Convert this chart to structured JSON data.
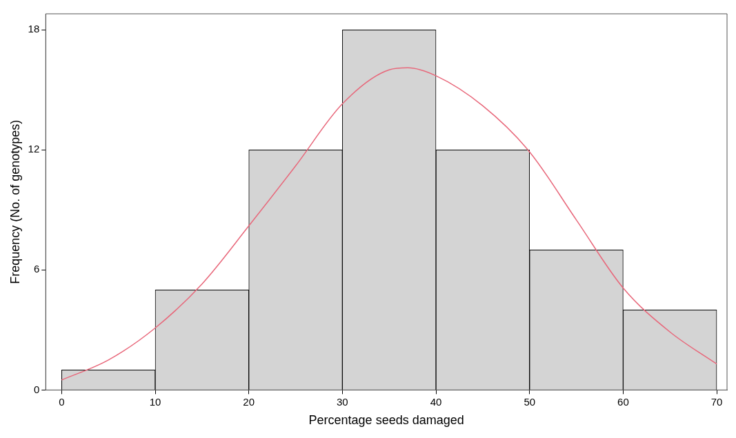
{
  "chart_data": {
    "type": "histogram",
    "xlabel": "Percentage seeds damaged",
    "ylabel": "Frequency (No. of genotypes)",
    "bins": [
      0,
      10,
      20,
      30,
      40,
      50,
      60,
      70
    ],
    "values": [
      1,
      5,
      12,
      18,
      12,
      7,
      4
    ],
    "color": "#d4d4d4",
    "series": [
      {
        "type": "line",
        "color": "#e8677a",
        "x": [
          0,
          5,
          10,
          15,
          20,
          25,
          30,
          35,
          37,
          40,
          45,
          50,
          55,
          60,
          65,
          70
        ],
        "values": [
          0.5,
          1.5,
          3.1,
          5.3,
          8.2,
          11.2,
          14.3,
          16.0,
          16.1,
          15.7,
          14.2,
          11.9,
          8.5,
          5.1,
          2.9,
          1.3
        ]
      }
    ],
    "xlim": [
      -1.7,
      71.1
    ],
    "xticks": [
      0,
      10,
      20,
      30,
      40,
      50,
      60,
      70
    ],
    "ylim": [
      0,
      18.8
    ],
    "yticks": [
      0,
      6,
      12,
      18
    ],
    "grid": false,
    "legend": false
  }
}
